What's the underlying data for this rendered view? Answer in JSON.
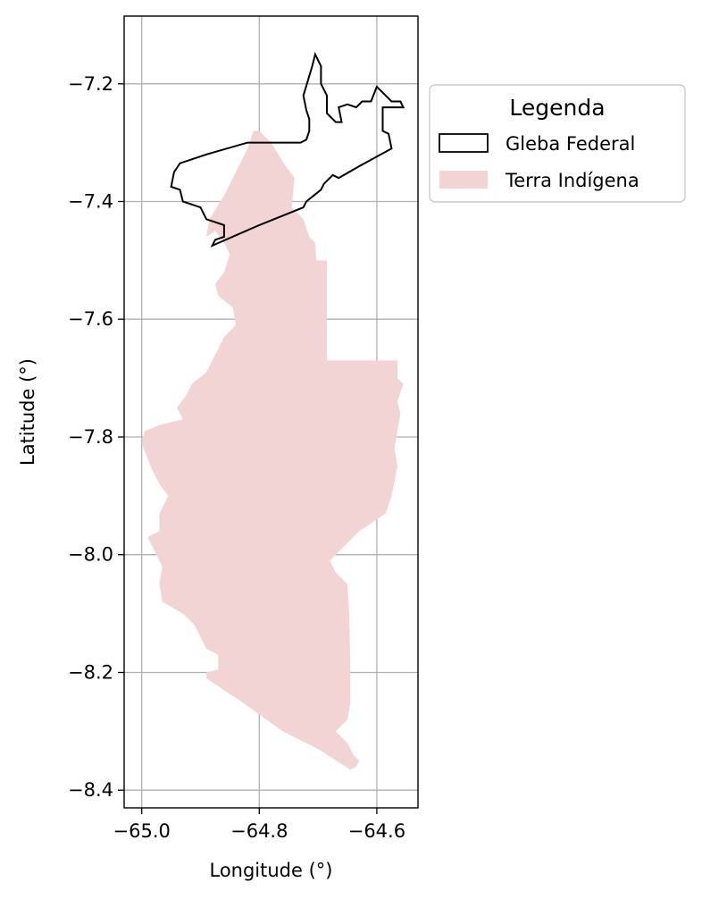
{
  "chart_data": {
    "type": "map",
    "xlabel": "Longitude (°)",
    "ylabel": "Latitude (°)",
    "xlim": [
      -65.03,
      -64.53
    ],
    "ylim": [
      -8.43,
      -7.085
    ],
    "grid": true,
    "x_ticks": [
      -65.0,
      -64.8,
      -64.6
    ],
    "x_tick_labels": [
      "−65.0",
      "−64.8",
      "−64.6"
    ],
    "y_ticks": [
      -7.2,
      -7.4,
      -7.6,
      -7.8,
      -8.0,
      -8.2,
      -8.4
    ],
    "y_tick_labels": [
      "−7.2",
      "−7.4",
      "−7.6",
      "−7.8",
      "−8.0",
      "−8.2",
      "−8.4"
    ],
    "legend": {
      "title": "Legenda",
      "placement": "outside-upper-right",
      "entries": [
        {
          "label": "Gleba Federal",
          "style": "outline",
          "color": "#000000"
        },
        {
          "label": "Terra Indígena",
          "style": "fill",
          "color": "#f2d4d4"
        }
      ]
    },
    "layers": [
      {
        "name": "Terra Indígena",
        "kind": "polygon",
        "fill": "#f2d4d4",
        "coordinates": [
          [
            -64.8,
            -7.28
          ],
          [
            -64.78,
            -7.3
          ],
          [
            -64.755,
            -7.34
          ],
          [
            -64.74,
            -7.36
          ],
          [
            -64.745,
            -7.41
          ],
          [
            -64.725,
            -7.43
          ],
          [
            -64.715,
            -7.46
          ],
          [
            -64.705,
            -7.47
          ],
          [
            -64.703,
            -7.5
          ],
          [
            -64.685,
            -7.5
          ],
          [
            -64.685,
            -7.67
          ],
          [
            -64.565,
            -7.67
          ],
          [
            -64.565,
            -7.7
          ],
          [
            -64.555,
            -7.71
          ],
          [
            -64.565,
            -7.74
          ],
          [
            -64.56,
            -7.76
          ],
          [
            -64.57,
            -7.82
          ],
          [
            -64.565,
            -7.85
          ],
          [
            -64.575,
            -7.9
          ],
          [
            -64.585,
            -7.93
          ],
          [
            -64.63,
            -7.96
          ],
          [
            -64.66,
            -7.99
          ],
          [
            -64.68,
            -8.01
          ],
          [
            -64.67,
            -8.03
          ],
          [
            -64.65,
            -8.05
          ],
          [
            -64.647,
            -8.1
          ],
          [
            -64.645,
            -8.2
          ],
          [
            -64.645,
            -8.25
          ],
          [
            -64.65,
            -8.28
          ],
          [
            -64.66,
            -8.29
          ],
          [
            -64.67,
            -8.3
          ],
          [
            -64.65,
            -8.32
          ],
          [
            -64.64,
            -8.34
          ],
          [
            -64.63,
            -8.35
          ],
          [
            -64.635,
            -8.36
          ],
          [
            -64.645,
            -8.365
          ],
          [
            -64.7,
            -8.33
          ],
          [
            -64.76,
            -8.3
          ],
          [
            -64.83,
            -8.25
          ],
          [
            -64.89,
            -8.21
          ],
          [
            -64.89,
            -8.2
          ],
          [
            -64.87,
            -8.195
          ],
          [
            -64.87,
            -8.17
          ],
          [
            -64.89,
            -8.16
          ],
          [
            -64.91,
            -8.12
          ],
          [
            -64.93,
            -8.1
          ],
          [
            -64.965,
            -8.08
          ],
          [
            -64.97,
            -8.05
          ],
          [
            -64.965,
            -8.02
          ],
          [
            -64.975,
            -8.0
          ],
          [
            -64.99,
            -7.97
          ],
          [
            -64.97,
            -7.96
          ],
          [
            -64.97,
            -7.93
          ],
          [
            -64.955,
            -7.9
          ],
          [
            -64.97,
            -7.88
          ],
          [
            -64.985,
            -7.85
          ],
          [
            -65.0,
            -7.81
          ],
          [
            -64.995,
            -7.79
          ],
          [
            -64.97,
            -7.78
          ],
          [
            -64.95,
            -7.775
          ],
          [
            -64.93,
            -7.77
          ],
          [
            -64.94,
            -7.75
          ],
          [
            -64.925,
            -7.73
          ],
          [
            -64.915,
            -7.71
          ],
          [
            -64.89,
            -7.69
          ],
          [
            -64.88,
            -7.67
          ],
          [
            -64.87,
            -7.65
          ],
          [
            -64.86,
            -7.63
          ],
          [
            -64.84,
            -7.61
          ],
          [
            -64.845,
            -7.58
          ],
          [
            -64.87,
            -7.56
          ],
          [
            -64.875,
            -7.54
          ],
          [
            -64.86,
            -7.52
          ],
          [
            -64.85,
            -7.49
          ],
          [
            -64.86,
            -7.47
          ],
          [
            -64.875,
            -7.45
          ],
          [
            -64.89,
            -7.46
          ],
          [
            -64.885,
            -7.43
          ],
          [
            -64.86,
            -7.39
          ],
          [
            -64.84,
            -7.35
          ],
          [
            -64.82,
            -7.31
          ],
          [
            -64.81,
            -7.28
          ]
        ]
      },
      {
        "name": "Gleba Federal",
        "kind": "polygon",
        "stroke": "#000000",
        "coordinates": [
          [
            -64.705,
            -7.15
          ],
          [
            -64.695,
            -7.17
          ],
          [
            -64.695,
            -7.2
          ],
          [
            -64.685,
            -7.22
          ],
          [
            -64.685,
            -7.25
          ],
          [
            -64.67,
            -7.265
          ],
          [
            -64.66,
            -7.265
          ],
          [
            -64.665,
            -7.24
          ],
          [
            -64.65,
            -7.235
          ],
          [
            -64.635,
            -7.24
          ],
          [
            -64.625,
            -7.23
          ],
          [
            -64.61,
            -7.23
          ],
          [
            -64.6,
            -7.205
          ],
          [
            -64.575,
            -7.23
          ],
          [
            -64.56,
            -7.23
          ],
          [
            -64.555,
            -7.24
          ],
          [
            -64.59,
            -7.24
          ],
          [
            -64.59,
            -7.28
          ],
          [
            -64.58,
            -7.285
          ],
          [
            -64.575,
            -7.31
          ],
          [
            -64.63,
            -7.34
          ],
          [
            -64.665,
            -7.36
          ],
          [
            -64.675,
            -7.355
          ],
          [
            -64.69,
            -7.37
          ],
          [
            -64.695,
            -7.38
          ],
          [
            -64.72,
            -7.4
          ],
          [
            -64.725,
            -7.41
          ],
          [
            -64.8,
            -7.44
          ],
          [
            -64.88,
            -7.475
          ],
          [
            -64.875,
            -7.465
          ],
          [
            -64.86,
            -7.46
          ],
          [
            -64.86,
            -7.44
          ],
          [
            -64.89,
            -7.43
          ],
          [
            -64.9,
            -7.41
          ],
          [
            -64.93,
            -7.4
          ],
          [
            -64.935,
            -7.38
          ],
          [
            -64.95,
            -7.375
          ],
          [
            -64.945,
            -7.35
          ],
          [
            -64.935,
            -7.335
          ],
          [
            -64.92,
            -7.33
          ],
          [
            -64.89,
            -7.32
          ],
          [
            -64.855,
            -7.31
          ],
          [
            -64.82,
            -7.3
          ],
          [
            -64.79,
            -7.3
          ],
          [
            -64.73,
            -7.3
          ],
          [
            -64.72,
            -7.295
          ],
          [
            -64.715,
            -7.28
          ],
          [
            -64.715,
            -7.26
          ],
          [
            -64.72,
            -7.245
          ],
          [
            -64.725,
            -7.22
          ],
          [
            -64.71,
            -7.17
          ]
        ]
      }
    ]
  }
}
